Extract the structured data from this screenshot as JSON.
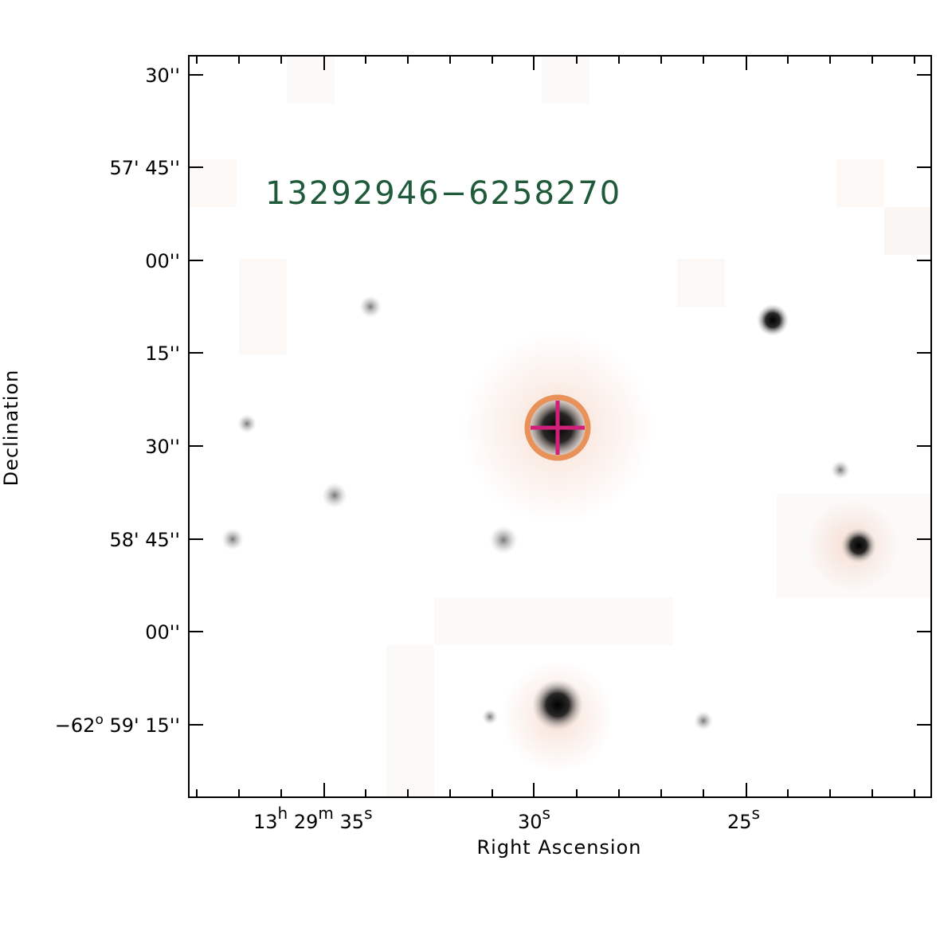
{
  "object_label": "13292946−6258270",
  "colors": {
    "label": "#1f5a3a",
    "marker_circle": "#e8925a",
    "marker_cross": "#d0207a",
    "axes": "#000000",
    "star": "#000000"
  },
  "axes": {
    "xlabel": "Right Ascension",
    "ylabel": "Declination",
    "x_ticks": [
      {
        "h": "13",
        "m": "29",
        "s": "35"
      },
      {
        "s": "30"
      },
      {
        "s": "25"
      }
    ],
    "y_ticks": [
      {
        "deg_sign": "",
        "arcmin": "",
        "arcsec": "30''"
      },
      {
        "deg_sign": "",
        "arcmin": "57'",
        "arcsec": "45''"
      },
      {
        "deg_sign": "",
        "arcmin": "",
        "arcsec": "00''"
      },
      {
        "deg_sign": "",
        "arcmin": "",
        "arcsec": "15''"
      },
      {
        "deg_sign": "",
        "arcmin": "",
        "arcsec": "30''"
      },
      {
        "deg_sign": "",
        "arcmin": "58'",
        "arcsec": "45''"
      },
      {
        "deg_sign": "",
        "arcmin": "",
        "arcsec": "00''"
      },
      {
        "deg": "−62",
        "deg_sign": "o",
        "arcmin": "59'",
        "arcsec": "15''"
      }
    ]
  }
}
